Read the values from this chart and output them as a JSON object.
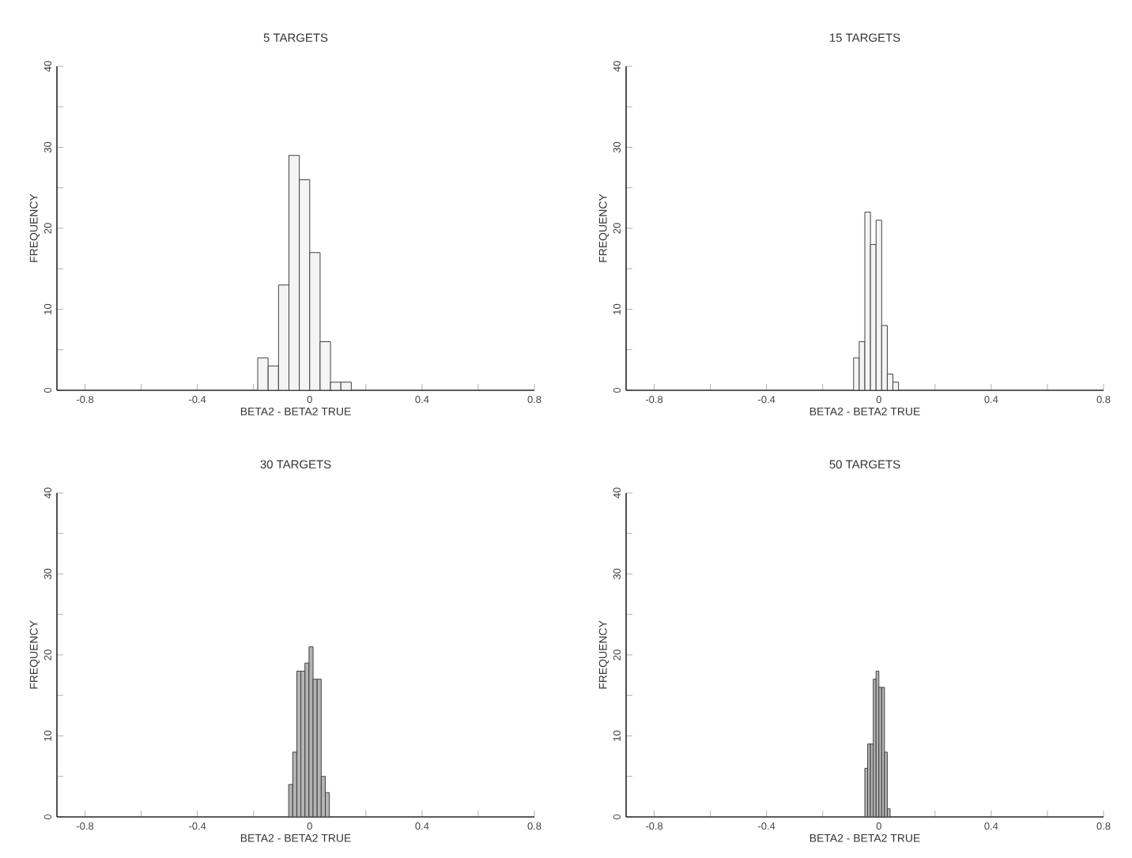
{
  "chart_data": [
    {
      "type": "histogram",
      "title": "5 TARGETS",
      "xlabel": "BETA2 - BETA2 TRUE",
      "ylabel": "FREQUENCY",
      "color": "#f4f4f4",
      "bins": [
        -0.185,
        -0.148,
        -0.111,
        -0.074,
        -0.037,
        0,
        0.037,
        0.074,
        0.111,
        0.148
      ],
      "values": [
        4,
        3,
        13,
        29,
        26,
        17,
        6,
        1,
        1
      ],
      "xlim": [
        -0.9,
        0.8
      ],
      "ylim": [
        0,
        40
      ],
      "xticks": [
        -0.8,
        {
          "value": -0.6,
          "label": null
        },
        -0.4,
        {
          "value": -0.2,
          "label": null
        },
        0,
        {
          "value": 0.2,
          "label": null
        },
        0.4,
        {
          "value": 0.6,
          "label": null
        },
        0.8
      ],
      "yticks": [
        0,
        {
          "value": 5,
          "label": null
        },
        10,
        {
          "value": 15,
          "label": null
        },
        20,
        {
          "value": 25,
          "label": null
        },
        30,
        {
          "value": 35,
          "label": null
        },
        40
      ]
    },
    {
      "type": "histogram",
      "title": "15 TARGETS",
      "xlabel": "BETA2 - BETA2 TRUE",
      "ylabel": "FREQUENCY",
      "color": "#f4f4f4",
      "bins": [
        -0.09,
        -0.07,
        -0.05,
        -0.03,
        -0.01,
        0.01,
        0.03,
        0.05,
        0.07
      ],
      "values": [
        4,
        6,
        22,
        18,
        21,
        8,
        2,
        1
      ],
      "xlim": [
        -0.9,
        0.8
      ],
      "ylim": [
        0,
        40
      ],
      "xticks": [
        -0.8,
        {
          "value": -0.6,
          "label": null
        },
        -0.4,
        {
          "value": -0.2,
          "label": null
        },
        0,
        {
          "value": 0.2,
          "label": null
        },
        0.4,
        {
          "value": 0.6,
          "label": null
        },
        0.8
      ],
      "yticks": [
        0,
        {
          "value": 5,
          "label": null
        },
        10,
        {
          "value": 15,
          "label": null
        },
        20,
        {
          "value": 25,
          "label": null
        },
        30,
        {
          "value": 35,
          "label": null
        },
        40
      ]
    },
    {
      "type": "histogram",
      "title": "30 TARGETS",
      "xlabel": "BETA2 - BETA2 TRUE",
      "ylabel": "FREQUENCY",
      "color": "#b4b4b4",
      "bins": [
        -0.075,
        -0.0605,
        -0.046,
        -0.0315,
        -0.017,
        -0.0025,
        0.012,
        0.0265,
        0.041,
        0.0555,
        0.07
      ],
      "values": [
        4,
        8,
        18,
        18,
        19,
        21,
        17,
        17,
        5,
        3
      ],
      "xlim": [
        -0.9,
        0.8
      ],
      "ylim": [
        0,
        40
      ],
      "xticks": [
        -0.8,
        {
          "value": -0.6,
          "label": null
        },
        -0.4,
        {
          "value": -0.2,
          "label": null
        },
        0,
        {
          "value": 0.2,
          "label": null
        },
        0.4,
        {
          "value": 0.6,
          "label": null
        },
        0.8
      ],
      "yticks": [
        0,
        {
          "value": 5,
          "label": null
        },
        10,
        {
          "value": 15,
          "label": null
        },
        20,
        {
          "value": 25,
          "label": null
        },
        30,
        {
          "value": 35,
          "label": null
        },
        40
      ]
    },
    {
      "type": "histogram",
      "title": "50 TARGETS",
      "xlabel": "BETA2 - BETA2 TRUE",
      "ylabel": "FREQUENCY",
      "color": "#b4b4b4",
      "bins": [
        -0.05,
        -0.04,
        -0.03,
        -0.02,
        -0.01,
        0,
        0.01,
        0.02,
        0.03,
        0.04
      ],
      "values": [
        6,
        9,
        9,
        17,
        18,
        16,
        16,
        8,
        1
      ],
      "xlim": [
        -0.9,
        0.8
      ],
      "ylim": [
        0,
        40
      ],
      "xticks": [
        -0.8,
        {
          "value": -0.6,
          "label": null
        },
        -0.4,
        {
          "value": -0.2,
          "label": null
        },
        0,
        {
          "value": 0.2,
          "label": null
        },
        0.4,
        {
          "value": 0.6,
          "label": null
        },
        0.8
      ],
      "yticks": [
        0,
        {
          "value": 5,
          "label": null
        },
        10,
        {
          "value": 15,
          "label": null
        },
        20,
        {
          "value": 25,
          "label": null
        },
        30,
        {
          "value": 35,
          "label": null
        },
        40
      ]
    }
  ]
}
